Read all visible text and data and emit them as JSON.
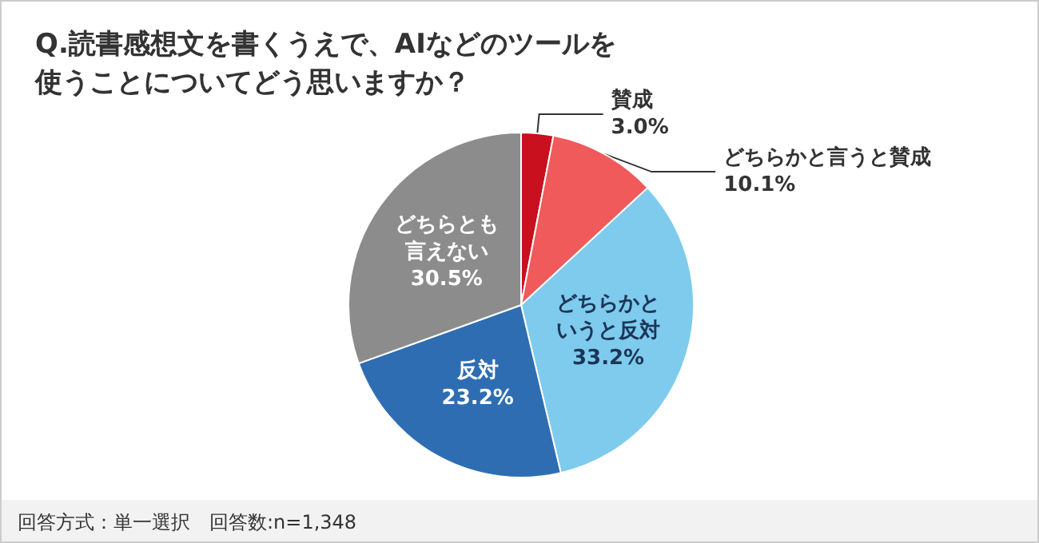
{
  "chart_data": {
    "type": "pie",
    "title": "Q.読書感想文を書くうえで、AIなどのツールを使うことについてどう思いますか？",
    "categories": [
      "賛成",
      "どちらかと言うと賛成",
      "どちらかというと反対",
      "反対",
      "どちらとも言えない"
    ],
    "values": [
      3.0,
      10.1,
      33.2,
      23.2,
      30.5
    ],
    "value_labels": [
      "3.0%",
      "10.1%",
      "33.2%",
      "23.2%",
      "30.5%"
    ],
    "colors": [
      "#c8101e",
      "#f05a5a",
      "#7ecbed",
      "#2f6db3",
      "#8c8c8c"
    ],
    "annotations": [
      "回答方式：単一選択　回答数:n=1,348"
    ],
    "legend": false
  }
}
